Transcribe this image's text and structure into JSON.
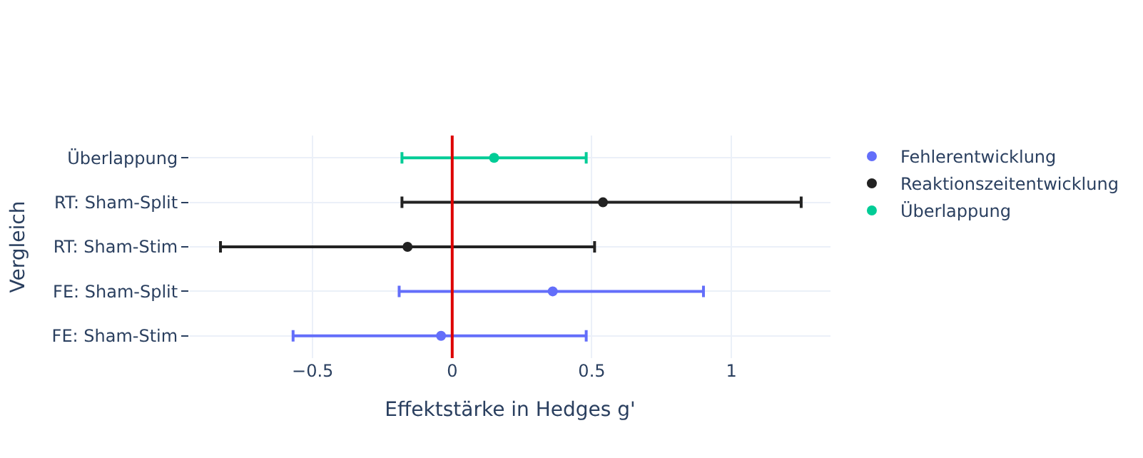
{
  "chart_data": {
    "type": "scatter",
    "orientation": "horizontal",
    "categories": [
      "Überlappung",
      "RT: Sham-Split",
      "RT: Sham-Stim",
      "FE: Sham-Split",
      "FE: Sham-Stim"
    ],
    "series": [
      {
        "name": "Fehlerentwicklung",
        "color": "#636efa",
        "values": [
          null,
          null,
          null,
          0.36,
          -0.04
        ],
        "errors": [
          null,
          null,
          null,
          [
            -0.19,
            0.9
          ],
          [
            -0.57,
            0.48
          ]
        ]
      },
      {
        "name": "Reaktionszeitentwicklung",
        "color": "#222222",
        "values": [
          null,
          0.54,
          -0.16,
          null,
          null
        ],
        "errors": [
          null,
          [
            -0.18,
            1.25
          ],
          [
            -0.83,
            0.51
          ],
          null,
          null
        ]
      },
      {
        "name": "Überlappung",
        "color": "#00cc96",
        "values": [
          0.15,
          null,
          null,
          null,
          null
        ],
        "errors": [
          [
            -0.18,
            0.48
          ],
          null,
          null,
          null,
          null
        ]
      }
    ],
    "xlabel": "Effektstärke in Hedges g'",
    "ylabel": "Vergleich",
    "xlim": [
      -0.94,
      1.355
    ],
    "xticks": [
      {
        "value": -0.5,
        "label": "−0.5"
      },
      0,
      0.5,
      1
    ],
    "ref_lines": [
      {
        "axis": "x",
        "value": 0,
        "color": "#dd0000"
      }
    ],
    "grid": true,
    "legend": "right",
    "marker": "circle"
  }
}
